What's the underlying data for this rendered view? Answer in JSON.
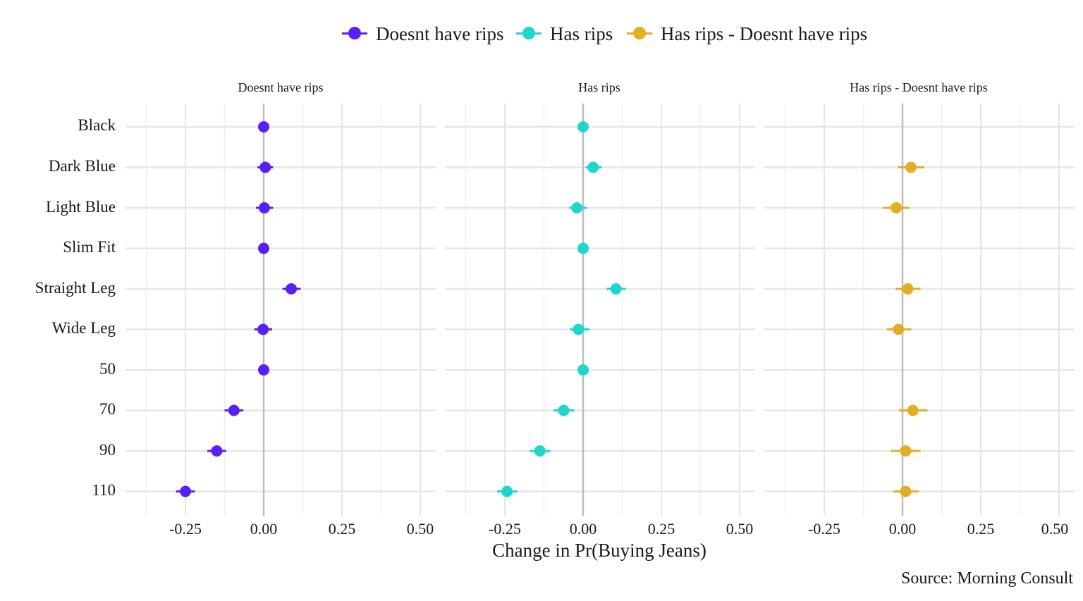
{
  "chart_data": {
    "type": "scatter",
    "subtype": "dot-and-whisker faceted",
    "xlabel": "Change in Pr(Buying Jeans)",
    "caption": "Source: Morning Consult",
    "legend_position": "top",
    "grid": true,
    "xlim": [
      -0.4,
      0.5
    ],
    "x_ticks": [
      "-0.25",
      "0.00",
      "0.25",
      "0.50"
    ],
    "x_tick_values": [
      -0.25,
      0,
      0.25,
      0.5
    ],
    "categories": [
      "Black",
      "Dark Blue",
      "Light Blue",
      "Slim Fit",
      "Straight Leg",
      "Wide Leg",
      "50",
      "70",
      "90",
      "110"
    ],
    "series": [
      {
        "name": "Doesnt have rips",
        "color": "#5a1ff2",
        "values": [
          0,
          0.005,
          0.002,
          0,
          0.088,
          -0.002,
          0,
          -0.095,
          -0.15,
          -0.25
        ],
        "lower": [
          0,
          -0.02,
          -0.025,
          0,
          0.06,
          -0.03,
          0,
          -0.125,
          -0.18,
          -0.28
        ],
        "upper": [
          0,
          0.03,
          0.03,
          0,
          0.118,
          0.027,
          0,
          -0.065,
          -0.12,
          -0.22
        ]
      },
      {
        "name": "Has rips",
        "color": "#1ed6cd",
        "values": [
          0,
          0.032,
          -0.02,
          0,
          0.105,
          -0.015,
          0,
          -0.062,
          -0.138,
          -0.243
        ],
        "lower": [
          0,
          0.008,
          -0.045,
          0,
          0.075,
          -0.042,
          0,
          -0.095,
          -0.17,
          -0.275
        ],
        "upper": [
          0,
          0.06,
          0.012,
          0,
          0.137,
          0.02,
          0,
          -0.028,
          -0.105,
          -0.21
        ]
      },
      {
        "name": "Has rips - Doesnt have rips",
        "color": "#e3ae24",
        "values": [
          null,
          0.027,
          -0.02,
          null,
          0.017,
          -0.013,
          null,
          0.033,
          0.01,
          0.01
        ],
        "lower": [
          null,
          -0.015,
          -0.062,
          null,
          -0.022,
          -0.05,
          null,
          -0.012,
          -0.037,
          -0.03
        ],
        "upper": [
          null,
          0.07,
          0.022,
          null,
          0.058,
          0.028,
          null,
          0.08,
          0.058,
          0.052
        ]
      }
    ],
    "facets": [
      "Doesnt have rips",
      "Has rips",
      "Has rips - Doesnt have rips"
    ]
  }
}
